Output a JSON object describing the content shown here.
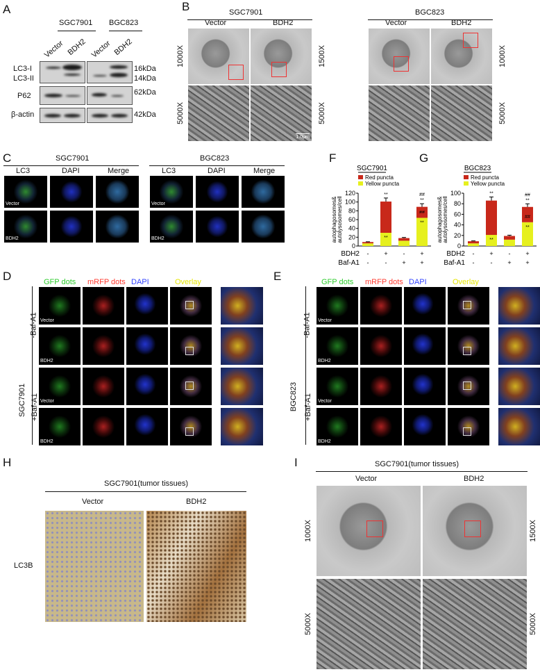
{
  "panels": {
    "A": {
      "label": "A",
      "groups": [
        "SGC7901",
        "BGC823"
      ],
      "lanes": [
        "Vector",
        "BDH2",
        "Vector",
        "BDH2"
      ],
      "rows": [
        "LC3-I",
        "LC3-II",
        "P62",
        "β-actin"
      ],
      "markers": [
        "16kDa",
        "14kDa",
        "62kDa",
        "42kDa"
      ]
    },
    "B": {
      "label": "B",
      "groups": [
        "SGC7901",
        "BGC823"
      ],
      "columns": [
        "Vector",
        "BDH2",
        "Vector",
        "BDH2"
      ],
      "mags_left": [
        "1000X",
        "5000X"
      ],
      "mags_mid": [
        "1500X",
        "5000X"
      ],
      "mags_right": [
        "1000X",
        "5000X"
      ],
      "scale": "1.0μm"
    },
    "C": {
      "label": "C",
      "groups": [
        "SGC7901",
        "BGC823"
      ],
      "columns": [
        "LC3",
        "DAPI",
        "Merge"
      ],
      "rows": [
        "Vector",
        "BDH2"
      ]
    },
    "D": {
      "label": "D",
      "cell": "SGC7901",
      "columns": [
        "GFP dots",
        "mRFP dots",
        "DAPI",
        "Overlay"
      ],
      "conditions": [
        "-Baf-A1",
        "+Baf-A1"
      ],
      "rows": [
        "Vector",
        "BDH2",
        "Vector",
        "BDH2"
      ]
    },
    "E": {
      "label": "E",
      "cell": "BGC823",
      "columns": [
        "GFP dots",
        "mRFP dots",
        "DAPI",
        "Overlay"
      ],
      "conditions": [
        "-Baf-A1",
        "+Baf-A1"
      ],
      "rows": [
        "Vector",
        "BDH2",
        "Vector",
        "BDH2"
      ]
    },
    "F": {
      "label": "F"
    },
    "G": {
      "label": "G"
    },
    "H": {
      "label": "H",
      "title": "SGC7901(tumor tissues)",
      "columns": [
        "Vector",
        "BDH2"
      ],
      "row": "LC3B"
    },
    "I": {
      "label": "I",
      "title": "SGC7901(tumor tissues)",
      "columns": [
        "Vector",
        "BDH2"
      ],
      "mags_left": [
        "1000X",
        "5000X"
      ],
      "mags_right": [
        "1500X",
        "5000X"
      ]
    }
  },
  "colors": {
    "red": "#c8281a",
    "yellow": "#e6f01e"
  },
  "chart_data": [
    {
      "type": "bar",
      "stacked": true,
      "title": "SGC7901",
      "ylabel": "autophagosomes&\nautolysosomes/cell",
      "ylim": [
        0,
        120
      ],
      "yticks": [
        0,
        20,
        40,
        60,
        80,
        100,
        120
      ],
      "categories": [
        "1",
        "2",
        "3",
        "4"
      ],
      "factors": [
        {
          "name": "BDH2",
          "values": [
            "-",
            "+",
            "-",
            "+"
          ]
        },
        {
          "name": "Baf-A1",
          "values": [
            "-",
            "-",
            "+",
            "+"
          ]
        }
      ],
      "series": [
        {
          "name": "Yellow puncta",
          "values": [
            6,
            30,
            12,
            64
          ]
        },
        {
          "name": "Red puncta",
          "values": [
            3,
            71,
            6,
            25
          ]
        }
      ],
      "annotations": [
        [
          "",
          ""
        ],
        [
          "**",
          "**"
        ],
        [
          "",
          ""
        ],
        [
          "**",
          "##\n**"
        ]
      ],
      "inner_annotations": [
        "",
        "",
        "",
        "##"
      ],
      "legend": "top-left"
    },
    {
      "type": "bar",
      "stacked": true,
      "title": "BGC823",
      "ylabel": "autophagosomes&\nautolysosomes/cell",
      "ylim": [
        0,
        100
      ],
      "yticks": [
        0,
        20,
        40,
        60,
        80,
        100
      ],
      "categories": [
        "1",
        "2",
        "3",
        "4"
      ],
      "factors": [
        {
          "name": "BDH2",
          "values": [
            "-",
            "+",
            "-",
            "+"
          ]
        },
        {
          "name": "Baf-A1",
          "values": [
            "-",
            "-",
            "+",
            "+"
          ]
        }
      ],
      "series": [
        {
          "name": "Yellow puncta",
          "values": [
            5,
            21,
            12,
            45
          ]
        },
        {
          "name": "Red puncta",
          "values": [
            4,
            65,
            7,
            29
          ]
        }
      ],
      "annotations": [
        [
          "",
          ""
        ],
        [
          "**",
          "**"
        ],
        [
          "",
          ""
        ],
        [
          "**",
          "##\n**"
        ]
      ],
      "inner_annotations": [
        "",
        "",
        "",
        "##"
      ],
      "legend": "top-left"
    }
  ]
}
